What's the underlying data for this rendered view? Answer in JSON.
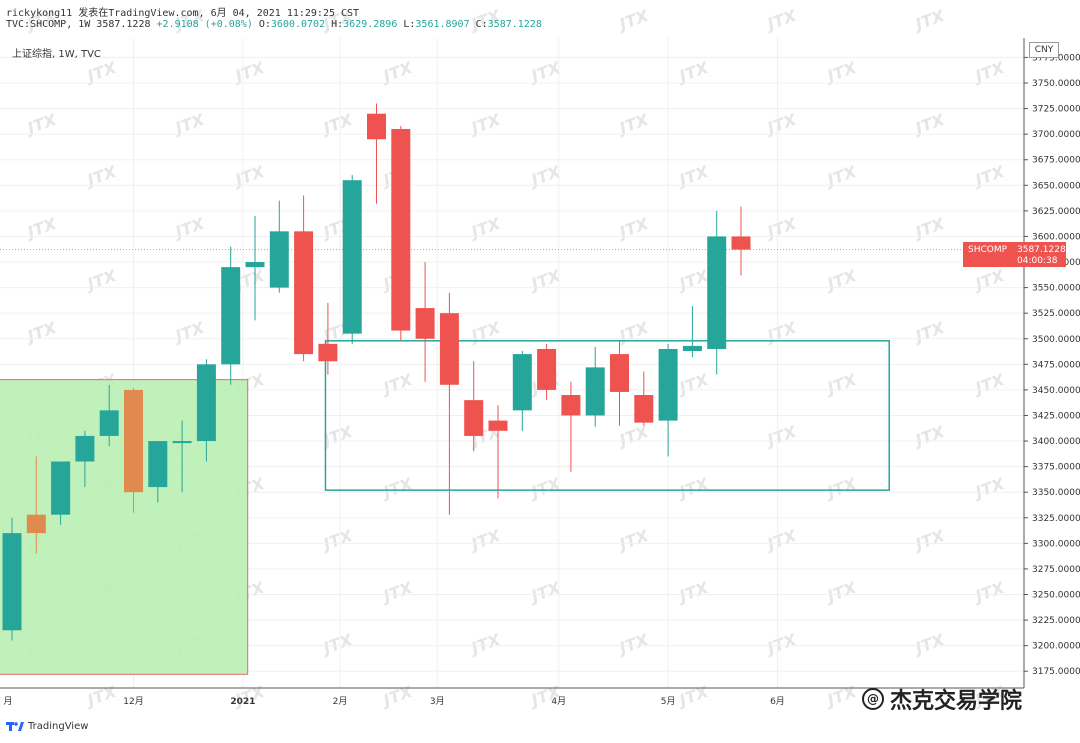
{
  "header": {
    "line1": "rickykong11 发表在TradingView.com, 6月 04, 2021 11:29:25 CST",
    "line2_prefix": "TVC:SHCOMP, 1W 3587.1228 ",
    "line2_change": "+2.9108 (+0.08%)",
    "o_label": " O:",
    "o_val": "3600.0702",
    "h_label": " H:",
    "h_val": "3629.2896",
    "l_label": " L:",
    "l_val": "3561.8907",
    "c_label": " C:",
    "c_val": "3587.1228"
  },
  "symbol_label": "上证综指, 1W, TVC",
  "currency": "CNY",
  "price_label": {
    "symbol": "SHCOMP",
    "price": "3587.1228",
    "countdown": "04:00:38"
  },
  "branding": {
    "name": "TradingView"
  },
  "watermark": {
    "text": "杰克交易学院",
    "tile": "JTX"
  },
  "colors": {
    "up": "#26a69a",
    "down": "#ef5350",
    "highlight": "#e08a50",
    "range_box": "#26a69a",
    "zone_fill": "#b9f0b4",
    "zone_border": "#e06a6a"
  },
  "chart_data": {
    "type": "candlestick",
    "ylim": [
      3150,
      3775
    ],
    "y_ticks": [
      "3775.0000",
      "3750.0000",
      "3725.0000",
      "3700.0000",
      "3675.0000",
      "3650.0000",
      "3625.0000",
      "3600.0000",
      "3575.0000",
      "3550.0000",
      "3525.0000",
      "3500.0000",
      "3475.0000",
      "3450.0000",
      "3425.0000",
      "3400.0000",
      "3375.0000",
      "3350.0000",
      "3325.0000",
      "3300.0000",
      "3275.0000",
      "3250.0000",
      "3225.0000",
      "3200.0000",
      "3175.0000"
    ],
    "x_labels": [
      {
        "label": "月",
        "bar": -0.5
      },
      {
        "label": "12月",
        "bar": 5
      },
      {
        "label": "2021",
        "bar": 9.5,
        "bold": true
      },
      {
        "label": "2月",
        "bar": 13.5
      },
      {
        "label": "3月",
        "bar": 17.5
      },
      {
        "label": "4月",
        "bar": 22.5
      },
      {
        "label": "5月",
        "bar": 27
      },
      {
        "label": "6月",
        "bar": 31.5
      }
    ],
    "candles": [
      {
        "o": 3215,
        "h": 3325,
        "l": 3205,
        "c": 3310
      },
      {
        "o": 3310,
        "h": 3385,
        "l": 3290,
        "c": 3328
      },
      {
        "o": 3328,
        "h": 3378,
        "l": 3318,
        "c": 3380
      },
      {
        "o": 3380,
        "h": 3410,
        "l": 3355,
        "c": 3405
      },
      {
        "o": 3405,
        "h": 3455,
        "l": 3395,
        "c": 3430
      },
      {
        "o": 3450,
        "h": 3452,
        "l": 3330,
        "c": 3350
      },
      {
        "o": 3355,
        "h": 3395,
        "l": 3340,
        "c": 3400
      },
      {
        "o": 3398,
        "h": 3420,
        "l": 3350,
        "c": 3400
      },
      {
        "o": 3400,
        "h": 3480,
        "l": 3380,
        "c": 3475
      },
      {
        "o": 3475,
        "h": 3590,
        "l": 3455,
        "c": 3570
      },
      {
        "o": 3570,
        "h": 3620,
        "l": 3518,
        "c": 3575
      },
      {
        "o": 3550,
        "h": 3635,
        "l": 3545,
        "c": 3605
      },
      {
        "o": 3605,
        "h": 3640,
        "l": 3478,
        "c": 3485
      },
      {
        "o": 3495,
        "h": 3535,
        "l": 3465,
        "c": 3478
      },
      {
        "o": 3505,
        "h": 3660,
        "l": 3495,
        "c": 3655
      },
      {
        "o": 3720,
        "h": 3730,
        "l": 3632,
        "c": 3695
      },
      {
        "o": 3705,
        "h": 3708,
        "l": 3498,
        "c": 3508
      },
      {
        "o": 3530,
        "h": 3575,
        "l": 3458,
        "c": 3500
      },
      {
        "o": 3525,
        "h": 3545,
        "l": 3328,
        "c": 3455
      },
      {
        "o": 3440,
        "h": 3478,
        "l": 3390,
        "c": 3405
      },
      {
        "o": 3420,
        "h": 3435,
        "l": 3344,
        "c": 3410
      },
      {
        "o": 3430,
        "h": 3488,
        "l": 3410,
        "c": 3485
      },
      {
        "o": 3490,
        "h": 3495,
        "l": 3440,
        "c": 3450
      },
      {
        "o": 3445,
        "h": 3458,
        "l": 3370,
        "c": 3425
      },
      {
        "o": 3425,
        "h": 3492,
        "l": 3414,
        "c": 3472
      },
      {
        "o": 3485,
        "h": 3498,
        "l": 3415,
        "c": 3448
      },
      {
        "o": 3445,
        "h": 3468,
        "l": 3415,
        "c": 3418
      },
      {
        "o": 3420,
        "h": 3495,
        "l": 3385,
        "c": 3490
      },
      {
        "o": 3488,
        "h": 3532,
        "l": 3482,
        "c": 3493
      },
      {
        "o": 3490,
        "h": 3625,
        "l": 3465,
        "c": 3600
      },
      {
        "o": 3600,
        "h": 3629.2896,
        "l": 3561.8907,
        "c": 3587.1228
      }
    ],
    "highlight_candles": [
      1,
      5
    ],
    "current_price": 3587.1228,
    "range_box": {
      "bar_start": 12.9,
      "bar_end": 36.1,
      "y_top": 3498,
      "y_bottom": 3352
    },
    "zone": {
      "bar_start": -0.85,
      "bar_end": 9.7,
      "y_top": 3460,
      "y_bottom": 3172
    }
  }
}
